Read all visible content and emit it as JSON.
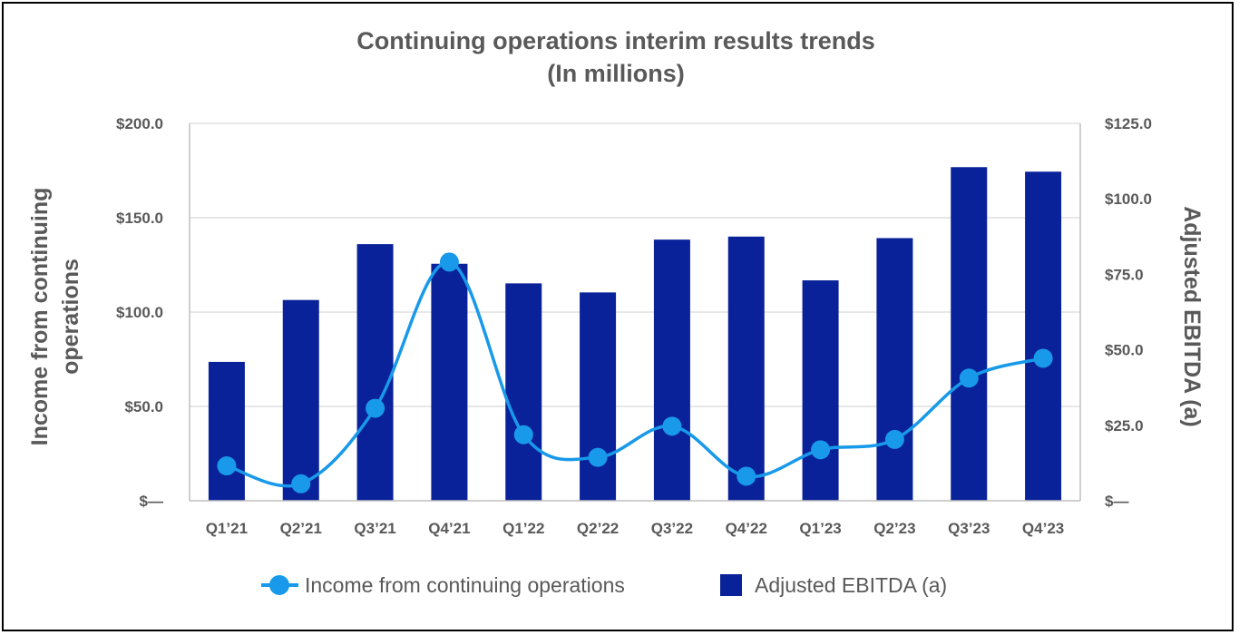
{
  "chart_data": {
    "type": "bar+line",
    "title_line1": "Continuing operations interim results trends",
    "title_line2": "(In millions)",
    "categories": [
      "Q1’21",
      "Q2’21",
      "Q3’21",
      "Q4’21",
      "Q1’22",
      "Q2’22",
      "Q3’22",
      "Q4’22",
      "Q1’23",
      "Q2’23",
      "Q3’23",
      "Q4’23"
    ],
    "series": [
      {
        "name": "Adjusted EBITDA (a)",
        "type": "bar",
        "axis": "right",
        "color": "#0a2299",
        "values": [
          46.0,
          66.5,
          85.0,
          78.5,
          72.0,
          69.0,
          86.5,
          87.5,
          73.0,
          87.0,
          110.5,
          109.0
        ]
      },
      {
        "name": "Income from continuing operations",
        "type": "line",
        "axis": "left",
        "color": "#1899e9",
        "values": [
          18.5,
          9.0,
          49.0,
          126.5,
          35.0,
          23.0,
          39.5,
          13.0,
          27.0,
          32.5,
          65.0,
          75.5
        ]
      }
    ],
    "left_axis": {
      "label_line1": "Income from continuing",
      "label_line2": "operations",
      "ylim": [
        0,
        200
      ],
      "ticks": [
        0,
        50,
        100,
        150,
        200
      ],
      "tick_labels": [
        "$—",
        "$50.0",
        "$100.0",
        "$150.0",
        "$200.0"
      ]
    },
    "right_axis": {
      "label": "Adjusted EBITDA (a)",
      "ylim": [
        0,
        125
      ],
      "ticks": [
        0,
        25,
        50,
        75,
        100,
        125
      ],
      "tick_labels": [
        "$—",
        "$25.0",
        "$50.0",
        "$75.0",
        "$100.0",
        "$125.0"
      ]
    },
    "grid": true,
    "legend_position": "bottom",
    "legend": [
      "Income from continuing operations",
      "Adjusted EBITDA (a)"
    ]
  }
}
